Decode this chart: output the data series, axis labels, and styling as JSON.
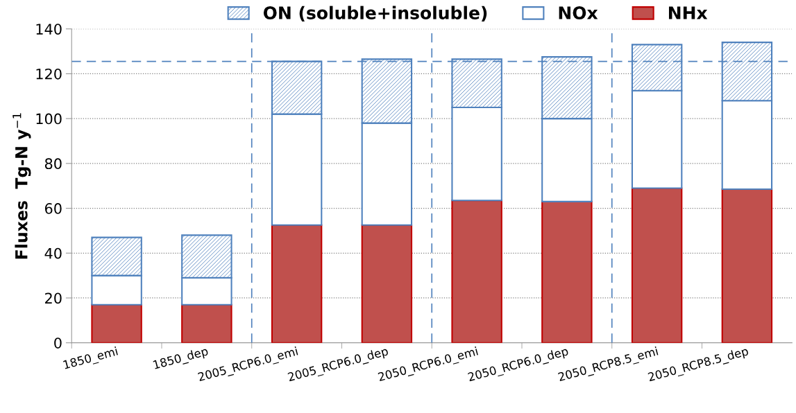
{
  "chart_data": {
    "type": "bar",
    "stacked": true,
    "ylabel": "Fluxes  Tg-N y$^{−1}$",
    "categories": [
      "1850_emi",
      "1850_dep",
      "2005_RCP6.0_emi",
      "2005_RCP6.0_dep",
      "2050_RCP6.0_emi",
      "2050_RCP6.0_dep",
      "2050_RCP8.5_emi",
      "2050_RCP8.5_dep"
    ],
    "series": [
      {
        "name": "NHx",
        "color": "#c0504d",
        "values": [
          17,
          17,
          52.5,
          52.5,
          63.5,
          63,
          69,
          68.5
        ]
      },
      {
        "name": "NOx",
        "color": "#ffffff",
        "values": [
          13,
          12,
          49.5,
          45.5,
          41.5,
          37,
          43.5,
          39.5
        ]
      },
      {
        "name": "ON (soluble+insoluble)",
        "color": "#4f81bd",
        "values": [
          17,
          19,
          23.5,
          28.5,
          21.5,
          27.5,
          20.5,
          26
        ]
      }
    ],
    "ylim": [
      0,
      140
    ],
    "yticks": [
      0,
      20,
      40,
      60,
      80,
      100,
      120,
      140
    ],
    "grid": "y",
    "legend": "top",
    "ref_lines": [
      {
        "axis": "y",
        "value": 125.5,
        "color": "#4f81bd",
        "line_style": "dashed"
      }
    ]
  }
}
